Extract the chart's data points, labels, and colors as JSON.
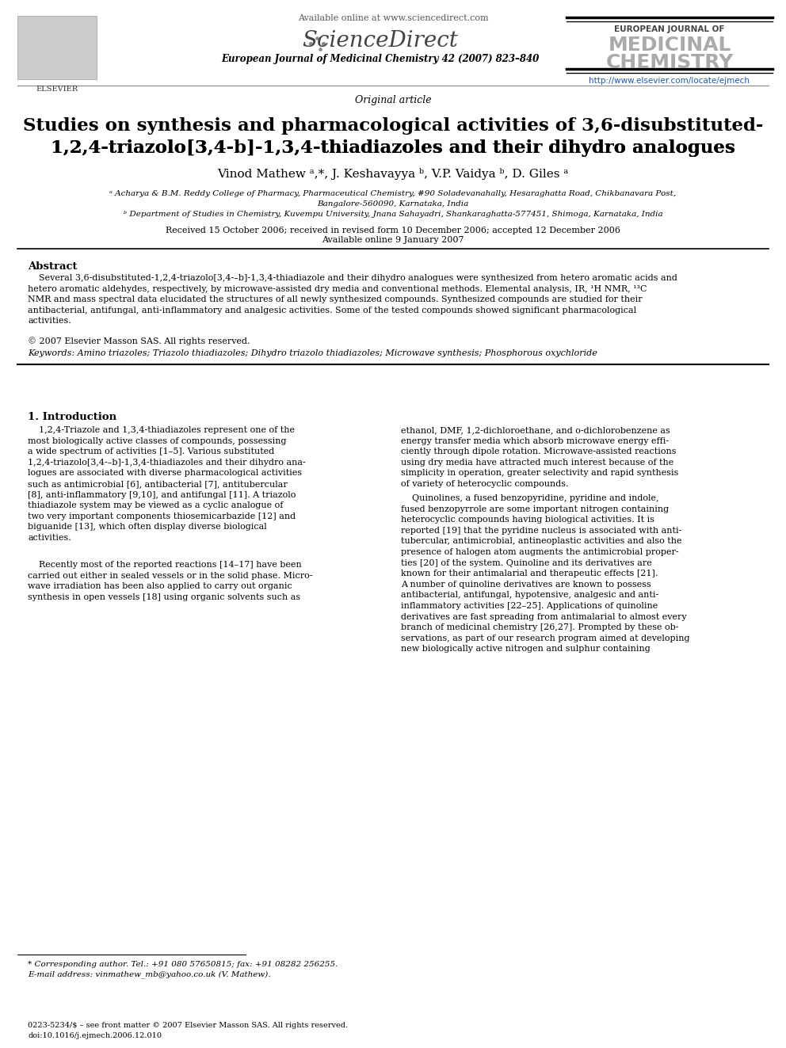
{
  "bg_color": "#ffffff",
  "title_article_type": "Original article",
  "title_main_line1": "Studies on synthesis and pharmacological activities of 3,6-disubstituted-",
  "title_main_line2_pre": "1,2,4-triazolo[3,4-",
  "title_main_line2_b": "b",
  "title_main_line2_post": "]-1,3,4-thiadiazoles and their dihydro analogues",
  "authors": "Vinod Mathew a,*, J. Keshavayya b, V.P. Vaidya b, D. Giles a",
  "affil_a": "a Acharya & B.M. Reddy College of Pharmacy, Pharmaceutical Chemistry, #90 Soladevanahally, Hesaraghatta Road, Chikbanavara Post,",
  "affil_a2": "Bangalore-560090, Karnataka, India",
  "affil_b": "b Department of Studies in Chemistry, Kuvempu University, Jnana Sahayadri, Shankaraghatta-577451, Shimoga, Karnataka, India",
  "received": "Received 15 October 2006; received in revised form 10 December 2006; accepted 12 December 2006",
  "available_date": "Available online 9 January 2007",
  "abstract_heading": "Abstract",
  "copyright": "© 2007 Elsevier Masson SAS. All rights reserved.",
  "keywords": "Keywords: Amino triazoles; Triazolo thiadiazoles; Dihydro triazolo thiadiazoles; Microwave synthesis; Phosphorous oxychloride",
  "section1_heading": "1. Introduction",
  "footnote_star": "* Corresponding author. Tel.: +91 080 57650815; fax: +91 08282 256255.",
  "footnote_email": "E-mail address: vinmathew_mb@yahoo.co.uk (V. Mathew).",
  "bottom_line1": "0223-5234/$ – see front matter © 2007 Elsevier Masson SAS. All rights reserved.",
  "bottom_line2": "doi:10.1016/j.ejmech.2006.12.010",
  "journal_ref": "European Journal of Medicinal Chemistry 42 (2007) 823–840",
  "available_online": "Available online at www.sciencedirect.com",
  "url": "http://www.elsevier.com/locate/ejmech",
  "journal_name_line1": "EUROPEAN JOURNAL OF",
  "journal_name_line2": "MEDICINAL",
  "journal_name_line3": "CHEMISTRY",
  "elsevier_label": "ELSEVIER"
}
